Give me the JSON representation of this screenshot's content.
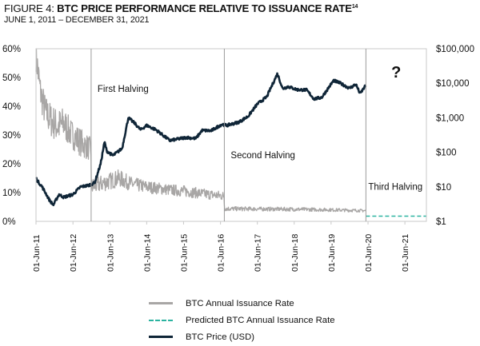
{
  "header": {
    "title_prefix": "FIGURE 4: ",
    "title_main": "BTC PRICE PERFORMANCE RELATIVE TO ISSUANCE RATE",
    "title_footnote": "14",
    "subtitle": "JUNE 1, 2011 – DECEMBER 31, 2021"
  },
  "colors": {
    "issuance": "#a8a6a5",
    "predicted": "#2bb3a0",
    "price": "#0f2537",
    "frame": "#c9c9c9",
    "halving_line": "#9b9b9b"
  },
  "chart_data": {
    "type": "line",
    "title": "BTC PRICE PERFORMANCE RELATIVE TO ISSUANCE RATE",
    "subtitle": "JUNE 1, 2011 – DECEMBER 31, 2021",
    "xlabel": "",
    "x_range": [
      "2011-06-01",
      "2021-12-31"
    ],
    "x_tick_labels": [
      "01-Jun-11",
      "01-Jun-12",
      "01-Jun-13",
      "01-Jun-14",
      "01-Jun-15",
      "01-Jun-16",
      "01-Jun-17",
      "01-Jun-18",
      "01-Jun-19",
      "01-Jun-20",
      "01-Jun-21"
    ],
    "y_left": {
      "label": "Annual Issuance Rate",
      "range": [
        0,
        60
      ],
      "tick_labels": [
        "0%",
        "10%",
        "20%",
        "30%",
        "40%",
        "50%",
        "60%"
      ],
      "tick_values": [
        0,
        10,
        20,
        30,
        40,
        50,
        60
      ]
    },
    "y_right": {
      "label": "BTC Price (USD)",
      "scale": "log",
      "range": [
        1,
        100000
      ],
      "tick_labels": [
        "$1",
        "$10",
        "$100",
        "$1,000",
        "$10,000",
        "$100,000"
      ],
      "tick_values": [
        1,
        10,
        100,
        1000,
        10000,
        100000
      ]
    },
    "grid": false,
    "legend_position": "bottom-center",
    "halvings": [
      {
        "label": "First Halving",
        "date": "2012-11-28"
      },
      {
        "label": "Second Halving",
        "date": "2016-07-09"
      },
      {
        "label": "Third Halving",
        "date": "2020-05-11"
      }
    ],
    "annotations": [
      {
        "text": "?",
        "region": "after third halving"
      }
    ],
    "series": [
      {
        "name": "BTC Annual Issuance Rate",
        "axis": "left",
        "style": "solid-noisy",
        "x": [
          "2011-06-01",
          "2011-07-15",
          "2011-09-01",
          "2011-11-01",
          "2012-01-01",
          "2012-03-01",
          "2012-05-01",
          "2012-07-01",
          "2012-09-01",
          "2012-11-27",
          "2012-11-29",
          "2013-03-01",
          "2013-06-01",
          "2013-09-01",
          "2014-01-01",
          "2014-06-01",
          "2015-01-01",
          "2015-06-01",
          "2016-01-01",
          "2016-07-08",
          "2016-07-10",
          "2017-06-01",
          "2018-06-01",
          "2019-06-01",
          "2020-05-10"
        ],
        "values": [
          58,
          45,
          38,
          35,
          33,
          34,
          31,
          29,
          27,
          25,
          12,
          13,
          14,
          15,
          13,
          12,
          11,
          10.5,
          9.5,
          8.8,
          4.4,
          4.3,
          4.2,
          4.0,
          3.7
        ],
        "noise_amplitude": [
          6,
          6,
          6,
          6,
          6,
          6,
          5,
          5,
          5,
          4,
          3,
          3,
          3,
          3,
          2.5,
          2.2,
          2,
          2,
          1.8,
          1.6,
          0.8,
          0.7,
          0.7,
          0.6,
          0.5
        ]
      },
      {
        "name": "Predicted BTC Annual Issuance Rate",
        "axis": "left",
        "style": "dashed",
        "x": [
          "2020-05-11",
          "2021-12-31"
        ],
        "values": [
          1.8,
          1.8
        ]
      },
      {
        "name": "BTC Price (USD)",
        "axis": "right",
        "style": "solid-thick",
        "x": [
          "2011-06-01",
          "2011-06-15",
          "2011-08-01",
          "2011-10-15",
          "2011-11-20",
          "2012-01-15",
          "2012-03-01",
          "2012-06-01",
          "2012-08-15",
          "2012-11-01",
          "2013-01-01",
          "2013-03-01",
          "2013-04-10",
          "2013-05-01",
          "2013-07-01",
          "2013-10-01",
          "2013-12-01",
          "2014-02-01",
          "2014-04-01",
          "2014-06-01",
          "2014-09-01",
          "2015-01-15",
          "2015-04-01",
          "2015-07-01",
          "2015-10-01",
          "2015-12-01",
          "2016-03-01",
          "2016-06-15",
          "2016-08-01",
          "2016-12-01",
          "2017-03-01",
          "2017-06-01",
          "2017-09-01",
          "2017-12-17",
          "2018-02-06",
          "2018-04-01",
          "2018-07-01",
          "2018-10-01",
          "2018-12-15",
          "2019-03-01",
          "2019-06-26",
          "2019-09-01",
          "2019-12-01",
          "2020-02-01",
          "2020-03-15",
          "2020-05-10"
        ],
        "values": [
          18,
          15,
          10,
          4,
          3,
          6,
          5,
          6,
          10,
          11,
          13,
          45,
          200,
          110,
          80,
          130,
          1000,
          700,
          450,
          600,
          450,
          220,
          240,
          270,
          250,
          430,
          420,
          650,
          600,
          750,
          1100,
          2500,
          4000,
          19000,
          7000,
          8000,
          6500,
          6400,
          3500,
          3900,
          12000,
          10000,
          7200,
          9300,
          5000,
          8700
        ]
      }
    ],
    "legend": [
      "BTC Annual Issuance Rate",
      "Predicted BTC Annual Issuance Rate",
      "BTC Price (USD)"
    ]
  },
  "legend": {
    "items": [
      {
        "label": "BTC Annual Issuance Rate"
      },
      {
        "label": "Predicted BTC Annual Issuance Rate"
      },
      {
        "label": "BTC Price (USD)"
      }
    ]
  }
}
